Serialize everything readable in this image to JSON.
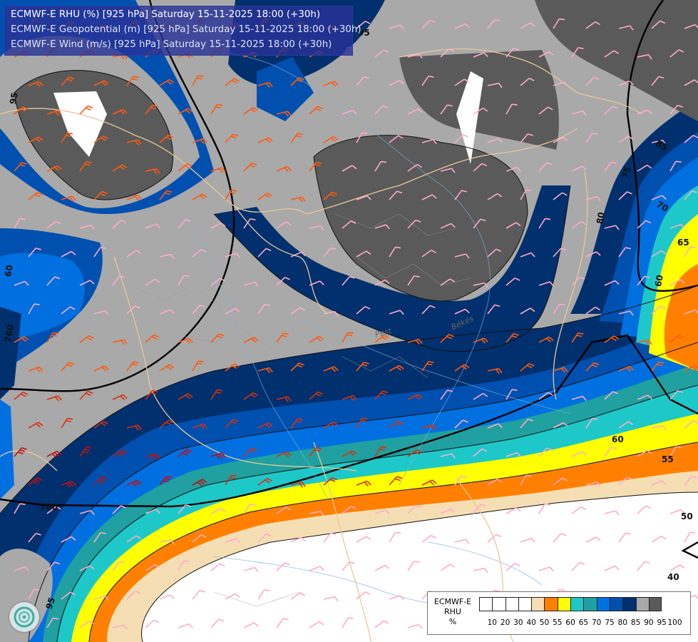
{
  "title": {
    "line1": "ECMWF-E RHU (%) [925 hPa] Saturday 15-11-2025 18:00 (+30h)",
    "line2": "ECMWF-E Geopotential (m) [925 hPa] Saturday 15-11-2025 18:00 (+30h)",
    "line3": "ECMWF-E Wind (m/s) [925 hPa] Saturday 15-11-2025 18:00 (+30h)"
  },
  "legend": {
    "model": "ECMWF-E",
    "field": "RHU",
    "unit": "%",
    "ticks": [
      "10",
      "20",
      "30",
      "40",
      "50",
      "55",
      "60",
      "65",
      "70",
      "75",
      "80",
      "85",
      "90",
      "95",
      "100"
    ],
    "colors": [
      "#ffffff",
      "#ffffff",
      "#ffffff",
      "#ffffff",
      "#f5deb3",
      "#ff8000",
      "#ffff00",
      "#1ec8c8",
      "#20a0a0",
      "#0070e0",
      "#0050b0",
      "#00306e",
      "#a9a9a9",
      "#5a5a5a"
    ]
  },
  "contour_labels": {
    "rhu": [
      "95",
      "95",
      "90",
      "85",
      "80",
      "75",
      "70",
      "65",
      "60",
      "60",
      "55",
      "50",
      "40",
      "95"
    ],
    "geopotential": [
      "760",
      "780"
    ]
  },
  "places": [
    "Pest",
    "Békés"
  ],
  "logo": "ecmwf-swirl-logo"
}
